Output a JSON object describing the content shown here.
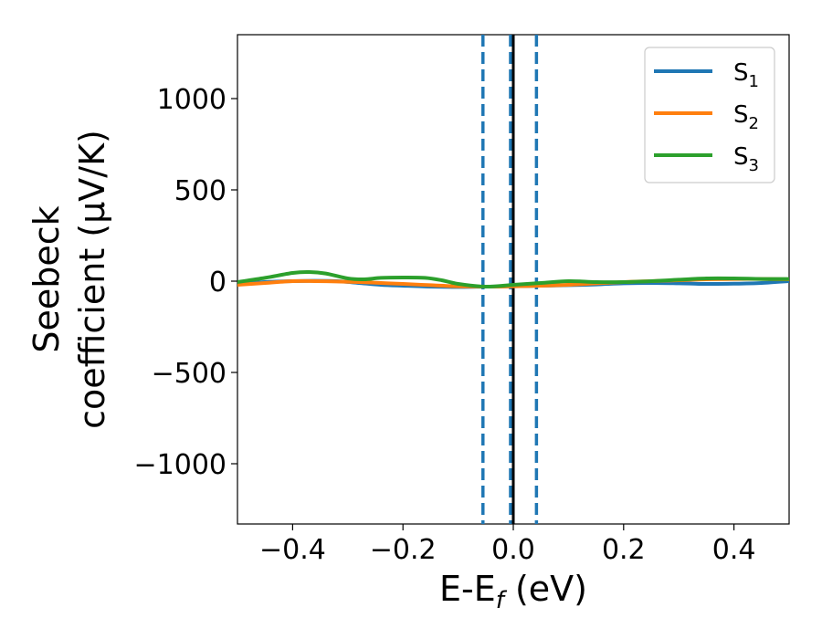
{
  "chart_data": {
    "type": "line",
    "xlabel": "E-E",
    "xlabel_sub": "f",
    "xlabel_unit": " (eV)",
    "ylabel_line1": "Seebeck",
    "ylabel_line2": "coefficient  (μV/K)",
    "xlim": [
      -0.5,
      0.5
    ],
    "ylim": [
      -1330,
      1350
    ],
    "xticks": [
      -0.4,
      -0.2,
      0.0,
      0.2,
      0.4
    ],
    "xtick_labels": [
      "−0.4",
      "−0.2",
      "0.0",
      "0.2",
      "0.4"
    ],
    "yticks": [
      -1000,
      -500,
      0,
      500,
      1000
    ],
    "ytick_labels": [
      "−1000",
      "−500",
      "0",
      "500",
      "1000"
    ],
    "grid": false,
    "legend_position": "top-right",
    "series": [
      {
        "name": "S",
        "sub": "1",
        "color": "#1f77b4",
        "x": [
          -0.5,
          -0.45,
          -0.4,
          -0.36,
          -0.32,
          -0.28,
          -0.24,
          -0.2,
          -0.15,
          -0.1,
          -0.05,
          0.0,
          0.05,
          0.1,
          0.15,
          0.2,
          0.25,
          0.3,
          0.35,
          0.4,
          0.45,
          0.5
        ],
        "values": [
          -15,
          -5,
          0,
          2,
          0,
          -10,
          -20,
          -25,
          -30,
          -32,
          -30,
          -28,
          -25,
          -22,
          -18,
          -12,
          -10,
          -12,
          -15,
          -14,
          -10,
          0
        ]
      },
      {
        "name": "S",
        "sub": "2",
        "color": "#ff7f0e",
        "x": [
          -0.5,
          -0.45,
          -0.4,
          -0.36,
          -0.32,
          -0.28,
          -0.24,
          -0.2,
          -0.15,
          -0.1,
          -0.05,
          0.0,
          0.05,
          0.1,
          0.15,
          0.2,
          0.25,
          0.3,
          0.35,
          0.4,
          0.45,
          0.5
        ],
        "values": [
          -20,
          -10,
          0,
          0,
          -2,
          -5,
          -10,
          -15,
          -22,
          -28,
          -30,
          -28,
          -25,
          -20,
          -12,
          -5,
          0,
          5,
          10,
          12,
          12,
          10
        ]
      },
      {
        "name": "S",
        "sub": "3",
        "color": "#2ca02c",
        "x": [
          -0.5,
          -0.45,
          -0.4,
          -0.37,
          -0.34,
          -0.3,
          -0.27,
          -0.24,
          -0.2,
          -0.16,
          -0.13,
          -0.1,
          -0.05,
          0.0,
          0.05,
          0.1,
          0.15,
          0.2,
          0.25,
          0.3,
          0.35,
          0.4,
          0.45,
          0.5
        ],
        "values": [
          -5,
          18,
          45,
          50,
          42,
          15,
          10,
          18,
          20,
          18,
          5,
          -15,
          -30,
          -20,
          -10,
          0,
          -5,
          -5,
          0,
          8,
          15,
          15,
          12,
          12
        ]
      }
    ],
    "vlines": [
      {
        "x": -0.055,
        "style": "dashed",
        "color": "#1f77b4"
      },
      {
        "x": -0.005,
        "style": "dashed",
        "color": "#1f77b4"
      },
      {
        "x": 0.0,
        "style": "solid",
        "color": "#000000"
      },
      {
        "x": 0.042,
        "style": "dashed",
        "color": "#1f77b4"
      }
    ]
  }
}
